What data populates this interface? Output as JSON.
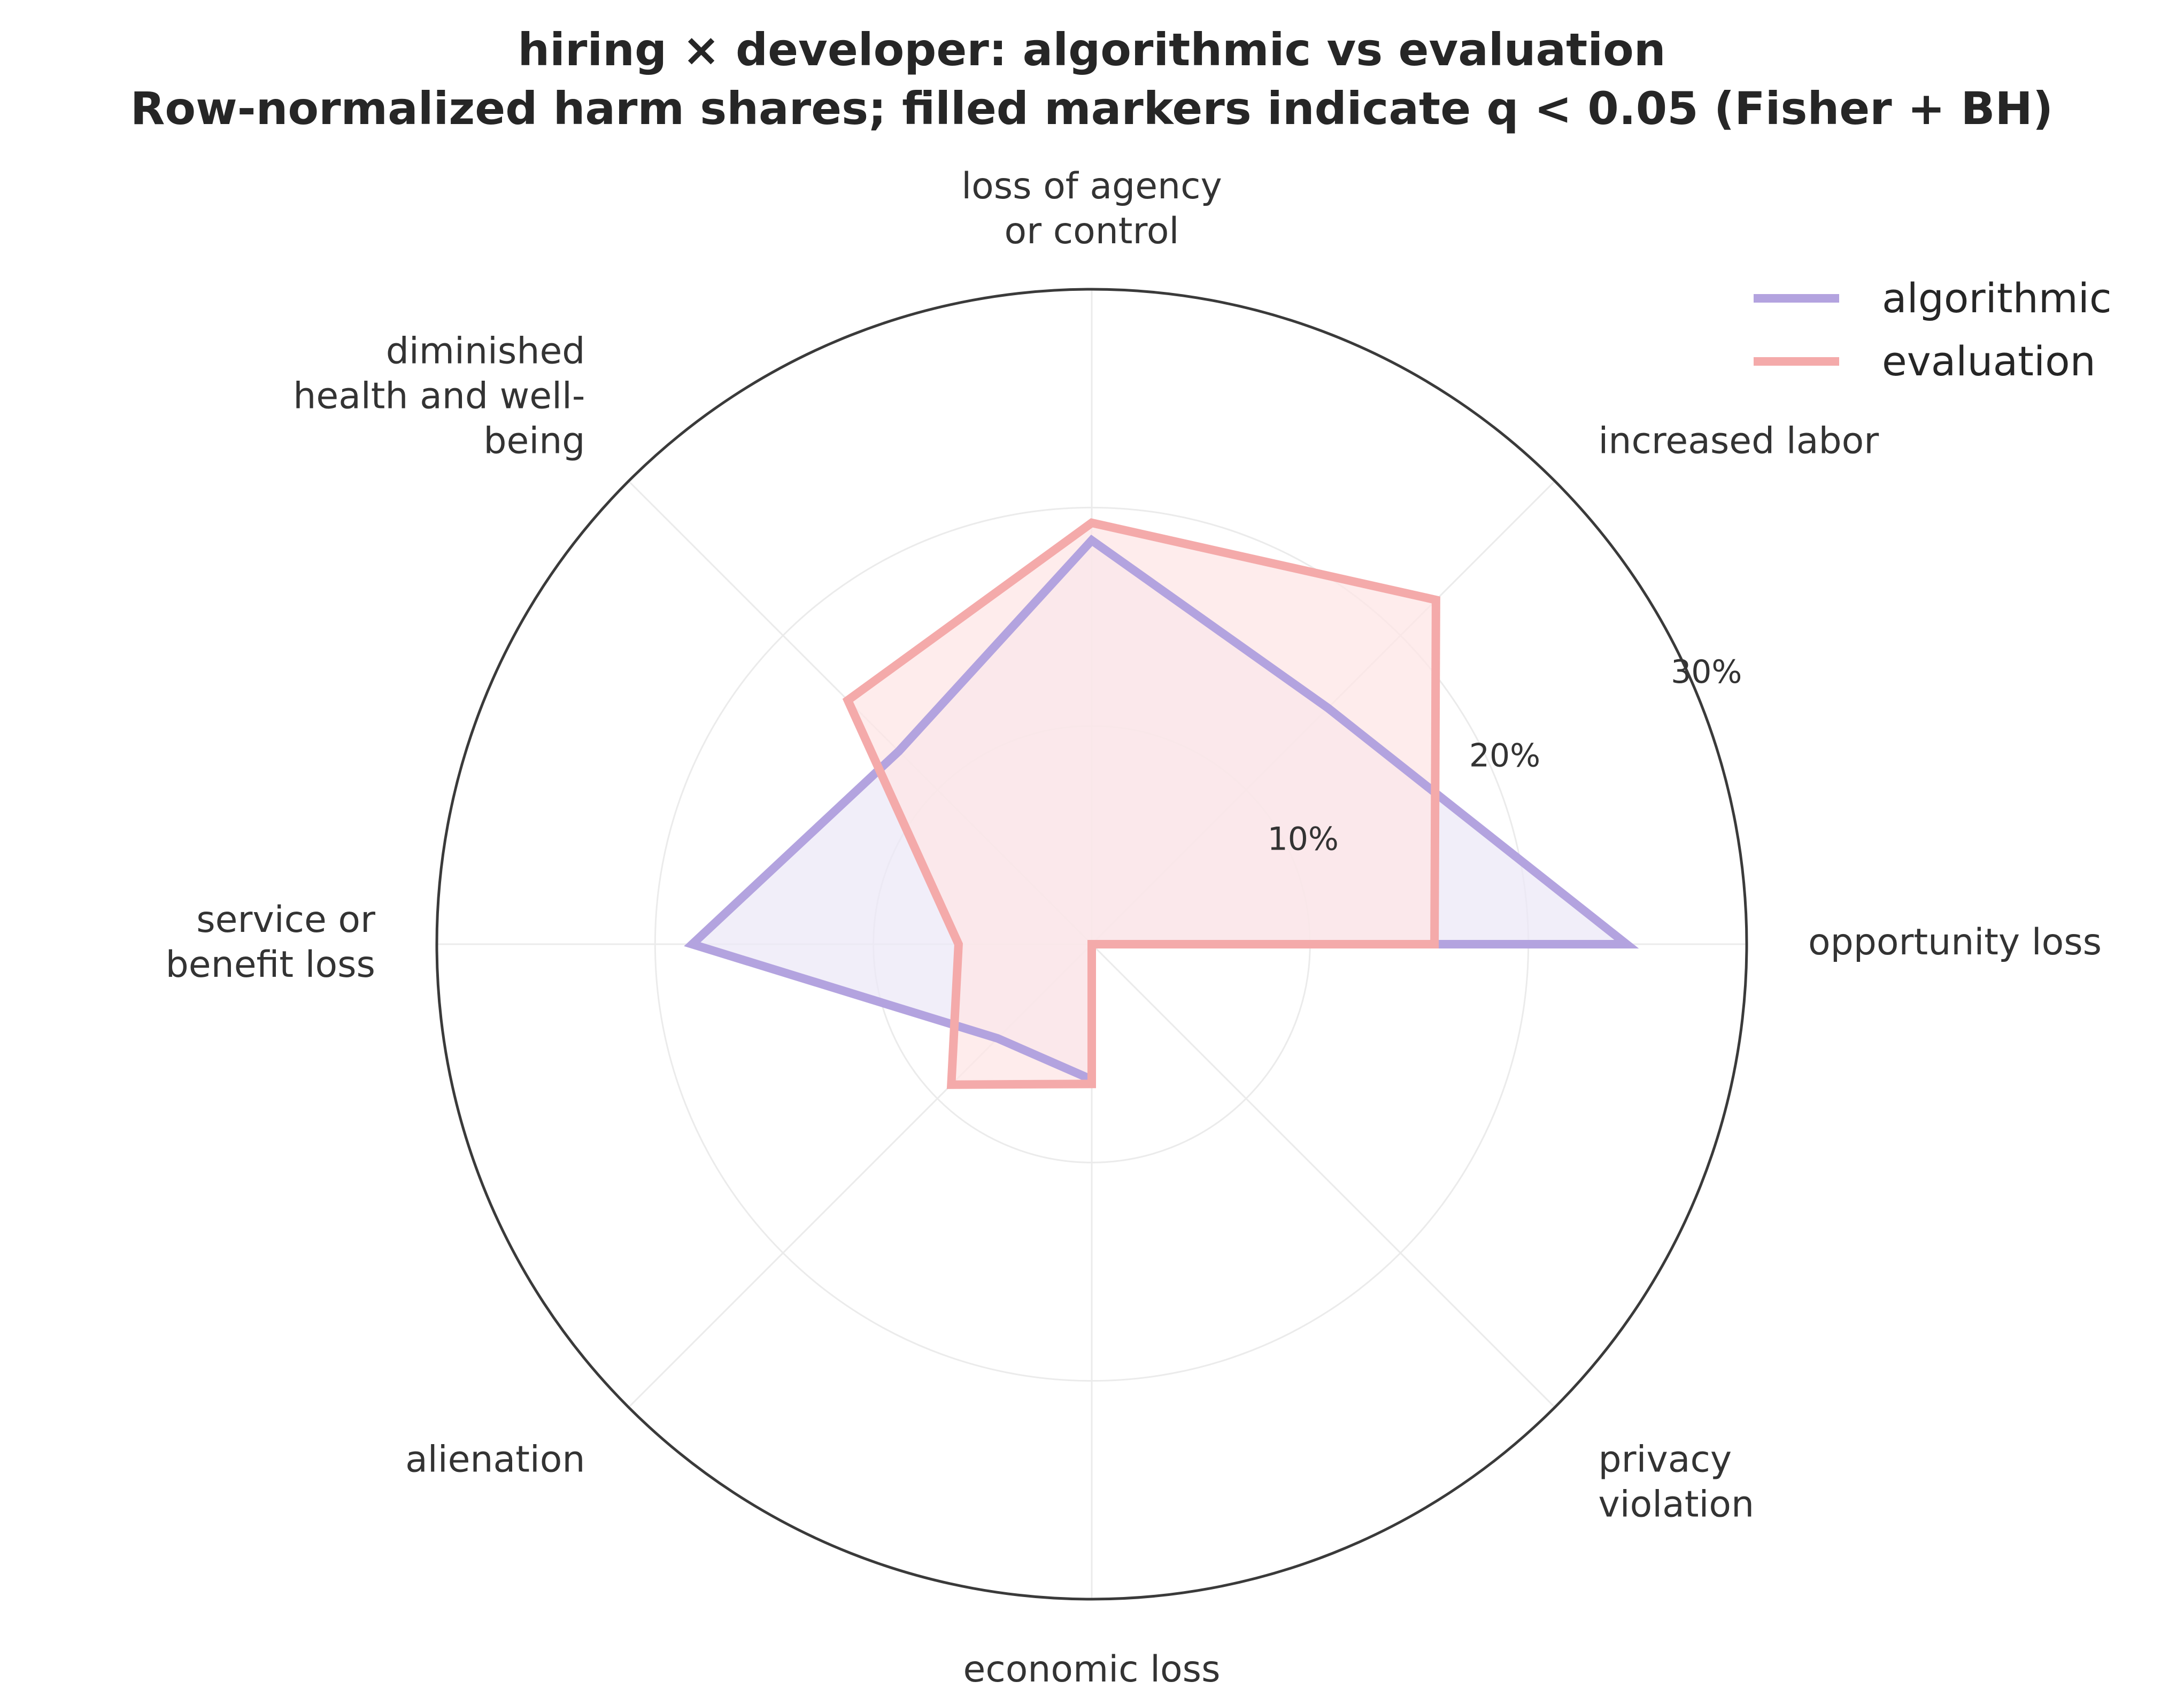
{
  "chart_data": {
    "type": "radar",
    "title_lines": [
      "hiring × developer: algorithmic vs evaluation",
      "Row-normalized harm shares; filled markers indicate q < 0.05 (Fisher + BH)"
    ],
    "categories": [
      [
        "opportunity loss"
      ],
      [
        "increased labor"
      ],
      [
        "loss of agency",
        "or control"
      ],
      [
        "diminished",
        "health and well-",
        "being"
      ],
      [
        "service or",
        "benefit loss"
      ],
      [
        "alienation"
      ],
      [
        "economic loss"
      ],
      [
        "privacy",
        "violation"
      ]
    ],
    "radial_ticks": [
      10,
      20,
      30
    ],
    "radial_tick_labels": [
      "10%",
      "20%",
      "30%"
    ],
    "rmax": 30,
    "unit": "%",
    "series": [
      {
        "name": "algorithmic",
        "color": "#b3a3df",
        "fill": "#ece8f7",
        "values": [
          24.5,
          15.3,
          18.5,
          12.5,
          18.3,
          6.1,
          6.2,
          0.0
        ]
      },
      {
        "name": "evaluation",
        "color": "#f4aaaa",
        "fill": "#fde6e6",
        "values": [
          15.7,
          22.3,
          19.3,
          15.8,
          6.1,
          9.1,
          6.4,
          0.0
        ]
      }
    ],
    "legend_position": "top-right",
    "grid": true
  }
}
